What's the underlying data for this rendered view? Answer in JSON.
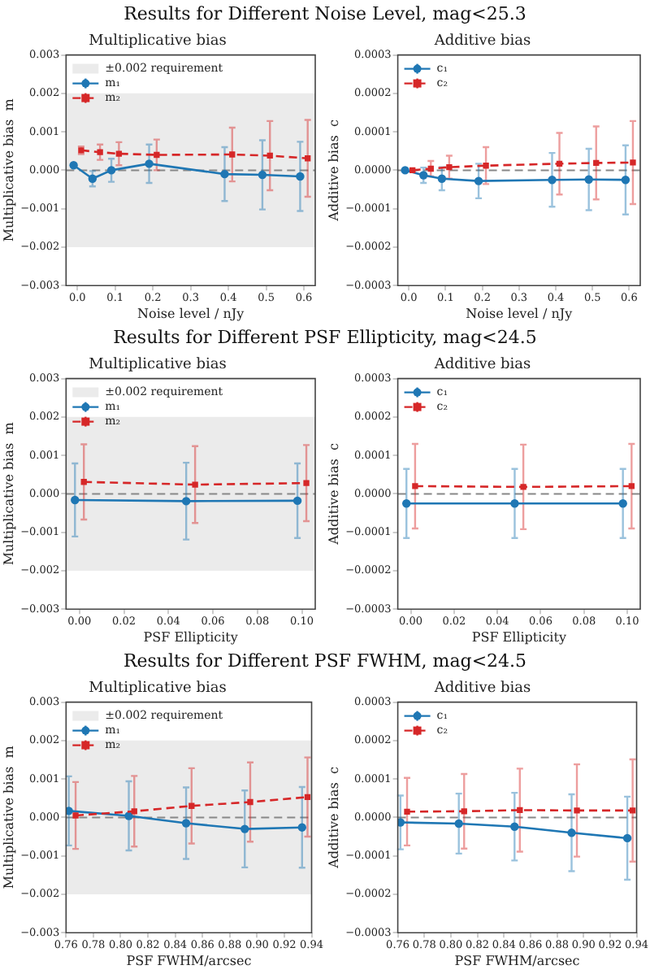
{
  "chart_data": [
    {
      "type": "line",
      "title": "Results for Different Noise Level, mag<25.3",
      "subtitle": "Multiplicative bias",
      "xlabel": "Noise level / nJy",
      "ylabel": "Multiplicative bias  m",
      "legend": "top left",
      "xlim": [
        -0.03,
        0.63
      ],
      "xticks": [
        {
          "value": 0,
          "label": "0.0"
        },
        0.1,
        0.2,
        0.3,
        0.4,
        0.5,
        0.6
      ],
      "ylim": [
        -0.003,
        0.003
      ],
      "yticks": [
        {
          "value": -0.003,
          "label": "−0.003"
        },
        {
          "value": -0.002,
          "label": "−0.002"
        },
        {
          "value": -0.001,
          "label": "−0.001"
        },
        {
          "value": 0,
          "label": "0.000"
        },
        0.001,
        0.002,
        0.003
      ],
      "bands": [
        {
          "axis": "y",
          "from": -0.002,
          "to": 0.002,
          "label": "±0.002 requirement",
          "color": "#ebebeb"
        }
      ],
      "ref_lines": [
        {
          "axis": "y",
          "value": 0,
          "color": "#888888",
          "line_style": "dashed"
        }
      ],
      "series": [
        {
          "name": "m₁",
          "color": "#1f77b4",
          "marker": "circle",
          "line_style": "solid",
          "x": [
            -0.01,
            0.04,
            0.09,
            0.19,
            0.39,
            0.49,
            0.59
          ],
          "values": [
            0.00013,
            -0.00022,
            0,
            0.00017,
            -0.0001,
            -0.00012,
            -0.00016
          ],
          "errors": [
            null,
            0.0002,
            0.0003,
            0.0005,
            0.0007,
            0.0009,
            0.0009
          ]
        },
        {
          "name": "m₂",
          "color": "#d62728",
          "marker": "square",
          "line_style": "dashed",
          "x": [
            0.01,
            0.06,
            0.11,
            0.21,
            0.41,
            0.51,
            0.61
          ],
          "values": [
            0.00052,
            0.00047,
            0.00043,
            0.0004,
            0.00041,
            0.00038,
            0.00031
          ],
          "errors": [
            0.0001,
            0.0002,
            0.0003,
            0.0004,
            0.0007,
            0.0009,
            0.001
          ]
        }
      ]
    },
    {
      "type": "line",
      "title": "Additive bias",
      "xlabel": "Noise level / nJy",
      "ylabel": "Additive bias  c",
      "legend": "top left",
      "xlim": [
        -0.03,
        0.63
      ],
      "xticks": [
        {
          "value": 0,
          "label": "0.0"
        },
        0.1,
        0.2,
        0.3,
        0.4,
        0.5,
        0.6
      ],
      "ylim": [
        -0.0003,
        0.0003
      ],
      "yticks": [
        {
          "value": -0.0003,
          "label": "−0.0003"
        },
        {
          "value": -0.0002,
          "label": "−0.0002"
        },
        {
          "value": -0.0001,
          "label": "−0.0001"
        },
        {
          "value": 0,
          "label": "0.0000"
        },
        0.0001,
        0.0002,
        0.0003
      ],
      "ref_lines": [
        {
          "axis": "y",
          "value": 0,
          "color": "#888888",
          "line_style": "dashed"
        }
      ],
      "series": [
        {
          "name": "c₁",
          "color": "#1f77b4",
          "marker": "circle",
          "line_style": "solid",
          "x": [
            -0.01,
            0.04,
            0.09,
            0.19,
            0.39,
            0.49,
            0.59
          ],
          "values": [
            0,
            -1.3e-05,
            -2.2e-05,
            -2.8e-05,
            -2.5e-05,
            -2.4e-05,
            -2.5e-05
          ],
          "errors": [
            null,
            2e-05,
            3e-05,
            4.5e-05,
            7e-05,
            8e-05,
            9e-05
          ]
        },
        {
          "name": "c₂",
          "color": "#d62728",
          "marker": "square",
          "line_style": "dashed",
          "x": [
            0.01,
            0.06,
            0.11,
            0.21,
            0.41,
            0.51,
            0.61
          ],
          "values": [
            0,
            4e-06,
            8e-06,
            1.2e-05,
            1.7e-05,
            1.9e-05,
            2e-05
          ],
          "errors": [
            null,
            2e-05,
            3e-05,
            4.8e-05,
            8e-05,
            9.5e-05,
            0.000108
          ]
        }
      ]
    },
    {
      "type": "line",
      "title": "Results for Different PSF Ellipticity, mag<24.5",
      "subtitle": "Multiplicative bias",
      "xlabel": "PSF Ellipticity",
      "ylabel": "Multiplicative bias  m",
      "legend": "top left",
      "xlim": [
        -0.006,
        0.106
      ],
      "xticks": [
        {
          "value": 0,
          "label": "0.00"
        },
        0.02,
        0.04,
        0.06,
        0.08,
        {
          "value": 0.1,
          "label": "0.10"
        }
      ],
      "ylim": [
        -0.003,
        0.003
      ],
      "yticks": [
        {
          "value": -0.003,
          "label": "−0.003"
        },
        {
          "value": -0.002,
          "label": "−0.002"
        },
        {
          "value": -0.001,
          "label": "−0.001"
        },
        {
          "value": 0,
          "label": "0.000"
        },
        0.001,
        0.002,
        0.003
      ],
      "bands": [
        {
          "axis": "y",
          "from": -0.002,
          "to": 0.002,
          "label": "±0.002 requirement",
          "color": "#ebebeb"
        }
      ],
      "ref_lines": [
        {
          "axis": "y",
          "value": 0,
          "color": "#888888",
          "line_style": "dashed"
        }
      ],
      "series": [
        {
          "name": "m₁",
          "color": "#1f77b4",
          "marker": "circle",
          "line_style": "solid",
          "x": [
            -0.002,
            0.048,
            0.098
          ],
          "values": [
            -0.00016,
            -0.00019,
            -0.00018
          ],
          "errors": [
            0.00095,
            0.001,
            0.00097
          ]
        },
        {
          "name": "m₂",
          "color": "#d62728",
          "marker": "square",
          "line_style": "dashed",
          "x": [
            0.002,
            0.052,
            0.102
          ],
          "values": [
            0.00031,
            0.00024,
            0.00028
          ],
          "errors": [
            0.00098,
            0.001,
            0.00099
          ]
        }
      ]
    },
    {
      "type": "line",
      "title": "Additive bias",
      "xlabel": "PSF Ellipticity",
      "ylabel": "Additive bias  c",
      "legend": "top left",
      "xlim": [
        -0.006,
        0.106
      ],
      "xticks": [
        {
          "value": 0,
          "label": "0.00"
        },
        0.02,
        0.04,
        0.06,
        0.08,
        {
          "value": 0.1,
          "label": "0.10"
        }
      ],
      "ylim": [
        -0.0003,
        0.0003
      ],
      "yticks": [
        {
          "value": -0.0003,
          "label": "−0.0003"
        },
        {
          "value": -0.0002,
          "label": "−0.0002"
        },
        {
          "value": -0.0001,
          "label": "−0.0001"
        },
        {
          "value": 0,
          "label": "0.0000"
        },
        0.0001,
        0.0002,
        0.0003
      ],
      "ref_lines": [
        {
          "axis": "y",
          "value": 0,
          "color": "#888888",
          "line_style": "dashed"
        }
      ],
      "series": [
        {
          "name": "c₁",
          "color": "#1f77b4",
          "marker": "circle",
          "line_style": "solid",
          "x": [
            -0.002,
            0.048,
            0.098
          ],
          "values": [
            -2.5e-05,
            -2.5e-05,
            -2.5e-05
          ],
          "errors": [
            9e-05,
            9e-05,
            9e-05
          ]
        },
        {
          "name": "c₂",
          "color": "#d62728",
          "marker": "square",
          "line_style": "dashed",
          "x": [
            0.002,
            0.052,
            0.102
          ],
          "values": [
            2e-05,
            1.8e-05,
            2e-05
          ],
          "errors": [
            0.00011,
            0.00011,
            0.00011
          ]
        }
      ]
    },
    {
      "type": "line",
      "title": "Results for Different PSF FWHM, mag<24.5",
      "subtitle": "Multiplicative bias",
      "xlabel": "PSF FWHM/arcsec",
      "ylabel": "Multiplicative bias  m",
      "legend": "top left",
      "xlim": [
        0.76,
        0.94
      ],
      "xticks": [
        0.76,
        0.78,
        {
          "value": 0.8,
          "label": "0.80"
        },
        0.82,
        0.84,
        0.86,
        0.88,
        {
          "value": 0.9,
          "label": "0.90"
        },
        0.92,
        0.94
      ],
      "ylim": [
        -0.003,
        0.003
      ],
      "yticks": [
        {
          "value": -0.003,
          "label": "−0.003"
        },
        {
          "value": -0.002,
          "label": "−0.002"
        },
        {
          "value": -0.001,
          "label": "−0.001"
        },
        {
          "value": 0,
          "label": "0.000"
        },
        0.001,
        0.002,
        0.003
      ],
      "bands": [
        {
          "axis": "y",
          "from": -0.002,
          "to": 0.002,
          "label": "±0.002 requirement",
          "color": "#ebebeb"
        }
      ],
      "ref_lines": [
        {
          "axis": "y",
          "value": 0,
          "color": "#888888",
          "line_style": "dashed"
        }
      ],
      "series": [
        {
          "name": "m₁",
          "color": "#1f77b4",
          "marker": "circle",
          "line_style": "solid",
          "x": [
            0.762,
            0.806,
            0.848,
            0.891,
            0.933
          ],
          "values": [
            0.00017,
            4e-05,
            -0.00015,
            -0.0003,
            -0.00026
          ],
          "errors": [
            0.0009,
            0.0009,
            0.00093,
            0.001,
            0.00105
          ]
        },
        {
          "name": "m₂",
          "color": "#d62728",
          "marker": "square",
          "line_style": "dashed",
          "x": [
            0.767,
            0.81,
            0.852,
            0.895,
            0.937
          ],
          "values": [
            5e-05,
            0.00016,
            0.0003,
            0.0004,
            0.00053
          ],
          "errors": [
            0.00087,
            0.00092,
            0.00098,
            0.00103,
            0.00103
          ]
        }
      ]
    },
    {
      "type": "line",
      "title": "Additive bias",
      "xlabel": "PSF FWHM/arcsec",
      "ylabel": "Additive bias  c",
      "legend": "top left",
      "xlim": [
        0.76,
        0.94
      ],
      "xticks": [
        0.76,
        0.78,
        {
          "value": 0.8,
          "label": "0.80"
        },
        0.82,
        0.84,
        0.86,
        0.88,
        {
          "value": 0.9,
          "label": "0.90"
        },
        0.92,
        0.94
      ],
      "ylim": [
        -0.0003,
        0.0003
      ],
      "yticks": [
        {
          "value": -0.0003,
          "label": "−0.0003"
        },
        {
          "value": -0.0002,
          "label": "−0.0002"
        },
        {
          "value": -0.0001,
          "label": "−0.0001"
        },
        {
          "value": 0,
          "label": "0.0000"
        },
        0.0001,
        0.0002,
        0.0003
      ],
      "ref_lines": [
        {
          "axis": "y",
          "value": 0,
          "color": "#888888",
          "line_style": "dashed"
        }
      ],
      "series": [
        {
          "name": "c₁",
          "color": "#1f77b4",
          "marker": "circle",
          "line_style": "solid",
          "x": [
            0.762,
            0.806,
            0.848,
            0.891,
            0.933
          ],
          "values": [
            -1.3e-05,
            -1.6e-05,
            -2.4e-05,
            -4e-05,
            -5.4e-05
          ],
          "errors": [
            7e-05,
            7.8e-05,
            8.8e-05,
            0.0001,
            0.000108
          ]
        },
        {
          "name": "c₂",
          "color": "#d62728",
          "marker": "square",
          "line_style": "dashed",
          "x": [
            0.767,
            0.81,
            0.852,
            0.895,
            0.937
          ],
          "values": [
            1.5e-05,
            1.6e-05,
            1.9e-05,
            1.8e-05,
            1.8e-05
          ],
          "errors": [
            8.8e-05,
            9.7e-05,
            0.000108,
            0.00012,
            0.000133
          ]
        }
      ]
    }
  ]
}
